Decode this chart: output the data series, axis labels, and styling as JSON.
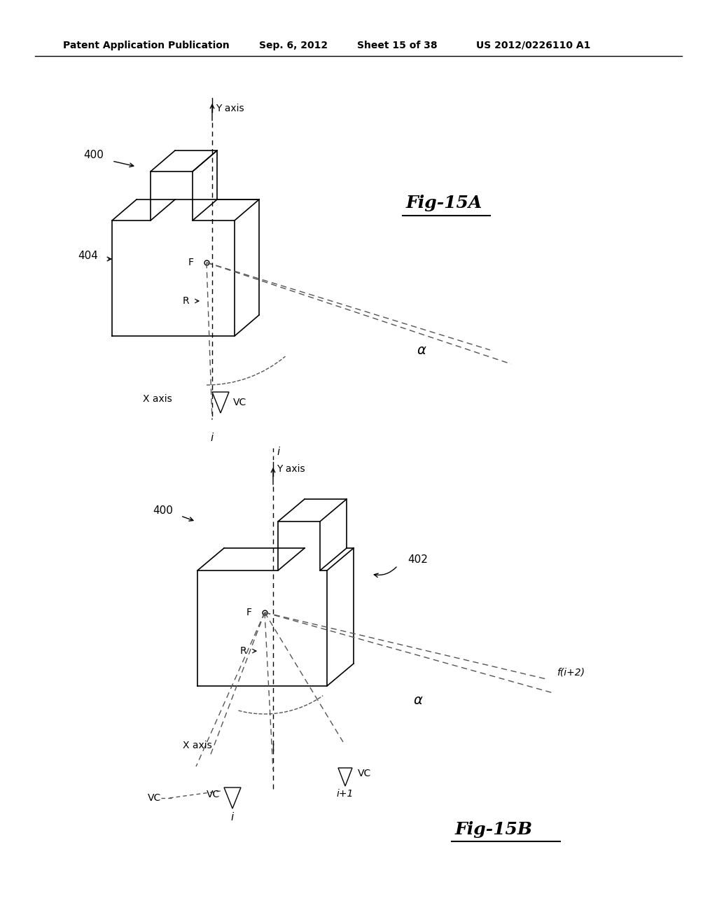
{
  "bg_color": "#ffffff",
  "header_text": "Patent Application Publication",
  "header_date": "Sep. 6, 2012",
  "header_sheet": "Sheet 15 of 38",
  "header_patent": "US 2012/0226110 A1",
  "fig15a_label": "Fig-15A",
  "fig15b_label": "Fig-15B",
  "line_color": "#000000",
  "dash_color": "#555555",
  "light_dash_color": "#aaaaaa"
}
